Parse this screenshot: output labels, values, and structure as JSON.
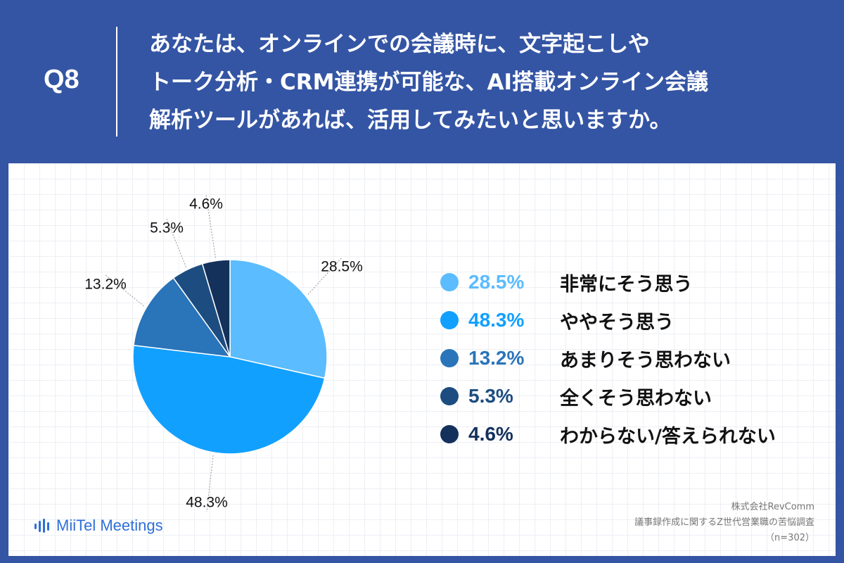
{
  "header": {
    "q_label": "Q8",
    "question_lines": [
      "あなたは、オンラインでの会議時に、文字起こしや",
      "トーク分析・CRM連携が可能な、AI搭載オンライン会議",
      "解析ツールがあれば、活用してみたいと思いますか。"
    ]
  },
  "chart_data": {
    "type": "pie",
    "title": "あなたは、オンラインでの会議時に、文字起こしやトーク分析・CRM連携が可能な、AI搭載オンライン会議解析ツールがあれば、活用してみたいと思いますか。",
    "unit": "%",
    "start": "12 o'clock, clockwise",
    "slices": [
      {
        "label": "非常にそう思う",
        "value": 28.5,
        "value_label": "28.5%",
        "color": "#5bbcff"
      },
      {
        "label": "ややそう思う",
        "value": 48.3,
        "value_label": "48.3%",
        "color": "#12a0ff"
      },
      {
        "label": "あまりそう思わない",
        "value": 13.2,
        "value_label": "13.2%",
        "color": "#2a74b9"
      },
      {
        "label": "全くそう思わない",
        "value": 5.3,
        "value_label": "5.3%",
        "color": "#1d4d80"
      },
      {
        "label": "わからない/答えられない",
        "value": 4.6,
        "value_label": "4.6%",
        "color": "#14315c"
      }
    ],
    "legend_position": "right"
  },
  "footer": {
    "logo_text": "MiiTel Meetings",
    "company": "株式会社RevComm",
    "survey": "議事録作成に関するZ世代営業職の苦悩調査",
    "sample": "（n=302）"
  }
}
